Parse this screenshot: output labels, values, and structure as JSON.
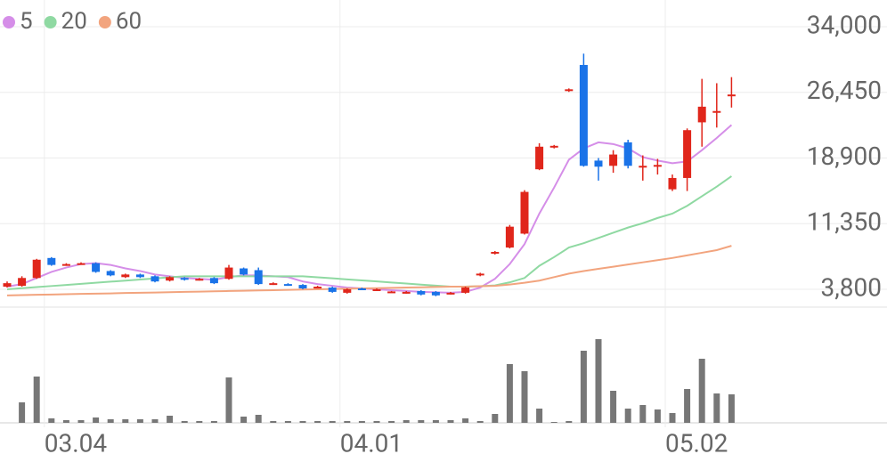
{
  "chart_data": {
    "type": "candlestick",
    "categories": [
      null,
      null,
      null,
      "03.04",
      null,
      null,
      null,
      null,
      null,
      null,
      null,
      null,
      null,
      null,
      null,
      null,
      null,
      null,
      null,
      null,
      null,
      null,
      null,
      "04.01",
      null,
      null,
      null,
      null,
      null,
      null,
      null,
      null,
      null,
      null,
      null,
      null,
      null,
      null,
      null,
      null,
      null,
      null,
      null,
      null,
      null,
      "05.02",
      null,
      null,
      null,
      null
    ],
    "open": [
      4100,
      4200,
      5100,
      7400,
      6600,
      6700,
      6800,
      5900,
      5200,
      5500,
      5300,
      4800,
      5100,
      4900,
      5100,
      5000,
      6200,
      6000,
      4400,
      4400,
      4300,
      4000,
      4000,
      3400,
      3900,
      3700,
      3450,
      3400,
      3600,
      3500,
      3300,
      3400,
      5400,
      7900,
      8600,
      10200,
      17600,
      20100,
      26600,
      29600,
      18600,
      18000,
      20700,
      17800,
      17900,
      15300,
      16600,
      23000,
      24100,
      26000
    ],
    "high": [
      4700,
      5300,
      7300,
      7500,
      6800,
      6900,
      6900,
      6000,
      5600,
      5600,
      5400,
      5300,
      5200,
      5100,
      5200,
      6600,
      6300,
      6300,
      4600,
      4500,
      4400,
      4200,
      4100,
      3900,
      4000,
      3900,
      3600,
      3600,
      3700,
      3600,
      3500,
      4100,
      5700,
      8200,
      11200,
      15200,
      20600,
      20400,
      26900,
      30900,
      18900,
      19800,
      21000,
      19200,
      18800,
      17000,
      22300,
      28000,
      27500,
      28200
    ],
    "low": [
      4000,
      4100,
      5000,
      6500,
      6500,
      6700,
      5700,
      5300,
      5100,
      5100,
      4600,
      4700,
      4800,
      4800,
      4400,
      4900,
      5400,
      4300,
      4300,
      4200,
      3800,
      3900,
      3400,
      3300,
      3700,
      3600,
      3400,
      3300,
      3100,
      3000,
      3200,
      3300,
      5300,
      7800,
      8500,
      10100,
      17500,
      20000,
      26500,
      17900,
      16300,
      17200,
      17700,
      16300,
      17000,
      15100,
      15100,
      20200,
      22400,
      24700
    ],
    "close": [
      4500,
      5100,
      7200,
      6600,
      6700,
      6800,
      5800,
      5400,
      5500,
      5200,
      4700,
      5200,
      4900,
      5000,
      4500,
      6300,
      5500,
      4400,
      4500,
      4300,
      3900,
      4100,
      3500,
      3800,
      3800,
      3800,
      3550,
      3500,
      3200,
      3100,
      3400,
      4000,
      5600,
      8100,
      11000,
      15000,
      20200,
      20300,
      26800,
      18000,
      17900,
      19300,
      18000,
      18000,
      18100,
      16600,
      22100,
      24800,
      24300,
      26200
    ],
    "up_color": "#e0261b",
    "down_color": "#1a73e8",
    "series": [
      {
        "name": "5",
        "color": "#d58ee8",
        "values": [
          4100,
          4400,
          5100,
          5800,
          6300,
          6700,
          6800,
          6600,
          6200,
          5900,
          5500,
          5300,
          5100,
          5000,
          4900,
          5200,
          5400,
          5400,
          5300,
          5200,
          4700,
          4400,
          4200,
          4000,
          3900,
          3800,
          3700,
          3600,
          3500,
          3450,
          3400,
          3500,
          4000,
          5000,
          6700,
          9000,
          12500,
          15500,
          18700,
          20000,
          20700,
          20500,
          20000,
          19000,
          18600,
          18300,
          18500,
          19800,
          21200,
          22700
        ]
      },
      {
        "name": "20",
        "color": "#8fd9a2",
        "values": [
          3800,
          3925,
          4050,
          4175,
          4300,
          4425,
          4550,
          4675,
          4800,
          4925,
          5050,
          5175,
          5300,
          5300,
          5300,
          5300,
          5300,
          5300,
          5300,
          5300,
          5300,
          5180,
          5060,
          4940,
          4820,
          4700,
          4580,
          4460,
          4340,
          4220,
          4100,
          4100,
          4150,
          4250,
          4600,
          5100,
          6500,
          7500,
          8600,
          9100,
          9700,
          10300,
          10900,
          11400,
          12000,
          12500,
          13400,
          14500,
          15600,
          16800
        ]
      },
      {
        "name": "60",
        "color": "#f2a47e",
        "values": [
          3100,
          3130,
          3170,
          3200,
          3230,
          3270,
          3300,
          3330,
          3370,
          3400,
          3430,
          3470,
          3500,
          3530,
          3570,
          3600,
          3630,
          3670,
          3700,
          3730,
          3770,
          3800,
          3830,
          3870,
          3900,
          3930,
          3970,
          4000,
          4030,
          4070,
          4100,
          4100,
          4150,
          4200,
          4350,
          4550,
          4800,
          5200,
          5600,
          5900,
          6150,
          6400,
          6650,
          6900,
          7150,
          7400,
          7700,
          8000,
          8300,
          8800
        ]
      }
    ],
    "ylim": [
      1750,
      37070
    ],
    "yticks": [
      {
        "value": 3800,
        "label": "3,800"
      },
      {
        "value": 11350,
        "label": "11,350"
      },
      {
        "value": 18900,
        "label": "18,900"
      },
      {
        "value": 26450,
        "label": "26,450"
      },
      {
        "value": 34000,
        "label": "34,000"
      }
    ],
    "volume": [
      0,
      23,
      52,
      5,
      3,
      3,
      6,
      4,
      4,
      4,
      4,
      8,
      2,
      2,
      2,
      51,
      7,
      9,
      2,
      2,
      2,
      2,
      2,
      2,
      2,
      2,
      2,
      3,
      3,
      3,
      3,
      5,
      2,
      10,
      66,
      58,
      16,
      1,
      2,
      81,
      94,
      36,
      16,
      20,
      15,
      11,
      38,
      72,
      33,
      32
    ],
    "volume_color": "#777777",
    "volume_lim": [
      0,
      125
    ],
    "grid": true
  }
}
